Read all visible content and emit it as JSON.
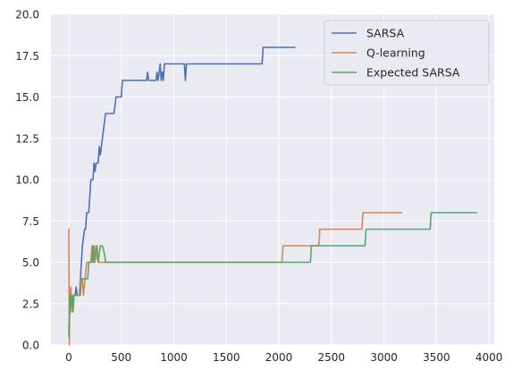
{
  "chart_data": {
    "type": "line",
    "title": "",
    "xlabel": "",
    "ylabel": "",
    "xlim": [
      -170,
      4050
    ],
    "ylim": [
      0,
      20
    ],
    "xticks": [
      0,
      500,
      1000,
      1500,
      2000,
      2500,
      3000,
      3500,
      4000
    ],
    "yticks": [
      0.0,
      2.5,
      5.0,
      7.5,
      10.0,
      12.5,
      15.0,
      17.5,
      20.0
    ],
    "xtick_labels": [
      "0",
      "500",
      "1000",
      "1500",
      "2000",
      "2500",
      "3000",
      "3500",
      "4000"
    ],
    "ytick_labels": [
      "0.0",
      "2.5",
      "5.0",
      "7.5",
      "10.0",
      "12.5",
      "15.0",
      "17.5",
      "20.0"
    ],
    "grid": true,
    "legend_position": "top-right",
    "series": [
      {
        "name": "SARSA",
        "color": "#4c72b0",
        "points": [
          [
            0,
            1
          ],
          [
            10,
            2
          ],
          [
            20,
            3
          ],
          [
            30,
            2
          ],
          [
            40,
            3
          ],
          [
            60,
            3
          ],
          [
            70,
            3.5
          ],
          [
            80,
            3
          ],
          [
            100,
            3
          ],
          [
            110,
            4
          ],
          [
            120,
            5
          ],
          [
            130,
            6
          ],
          [
            140,
            6.5
          ],
          [
            150,
            7
          ],
          [
            160,
            7
          ],
          [
            170,
            8
          ],
          [
            190,
            8
          ],
          [
            200,
            9
          ],
          [
            210,
            10
          ],
          [
            230,
            10
          ],
          [
            240,
            11
          ],
          [
            250,
            10.5
          ],
          [
            260,
            11
          ],
          [
            280,
            11
          ],
          [
            290,
            12
          ],
          [
            300,
            11.5
          ],
          [
            310,
            12
          ],
          [
            330,
            13
          ],
          [
            350,
            14
          ],
          [
            430,
            14
          ],
          [
            440,
            14.5
          ],
          [
            450,
            15
          ],
          [
            500,
            15
          ],
          [
            510,
            16
          ],
          [
            740,
            16
          ],
          [
            750,
            16.5
          ],
          [
            760,
            16
          ],
          [
            830,
            16
          ],
          [
            840,
            16.5
          ],
          [
            850,
            16
          ],
          [
            860,
            16.5
          ],
          [
            870,
            17
          ],
          [
            880,
            16
          ],
          [
            890,
            16.5
          ],
          [
            900,
            16
          ],
          [
            910,
            17
          ],
          [
            920,
            17
          ],
          [
            1100,
            17
          ],
          [
            1110,
            16
          ],
          [
            1120,
            17
          ],
          [
            1840,
            17
          ],
          [
            1850,
            18
          ],
          [
            2150,
            18
          ]
        ]
      },
      {
        "name": "Q-learning",
        "color": "#dd8452",
        "points": [
          [
            0,
            7
          ],
          [
            5,
            0
          ],
          [
            10,
            3
          ],
          [
            20,
            3.5
          ],
          [
            30,
            2
          ],
          [
            40,
            3
          ],
          [
            60,
            3
          ],
          [
            80,
            3
          ],
          [
            100,
            3
          ],
          [
            110,
            4
          ],
          [
            130,
            4
          ],
          [
            140,
            3
          ],
          [
            170,
            5
          ],
          [
            210,
            5
          ],
          [
            220,
            6
          ],
          [
            230,
            5
          ],
          [
            240,
            6
          ],
          [
            250,
            5
          ],
          [
            270,
            6
          ],
          [
            280,
            5
          ],
          [
            2030,
            5
          ],
          [
            2040,
            6
          ],
          [
            2380,
            6
          ],
          [
            2390,
            7
          ],
          [
            2790,
            7
          ],
          [
            2800,
            8
          ],
          [
            3170,
            8
          ]
        ]
      },
      {
        "name": "Expected SARSA",
        "color": "#55a868",
        "points": [
          [
            0,
            0.5
          ],
          [
            10,
            3
          ],
          [
            20,
            2.5
          ],
          [
            30,
            3
          ],
          [
            40,
            2
          ],
          [
            50,
            3
          ],
          [
            60,
            3
          ],
          [
            80,
            3
          ],
          [
            110,
            3
          ],
          [
            120,
            4
          ],
          [
            180,
            4
          ],
          [
            190,
            5
          ],
          [
            220,
            5
          ],
          [
            230,
            6
          ],
          [
            240,
            5
          ],
          [
            260,
            6
          ],
          [
            280,
            5
          ],
          [
            300,
            6
          ],
          [
            320,
            6
          ],
          [
            340,
            5.5
          ],
          [
            350,
            5
          ],
          [
            2300,
            5
          ],
          [
            2310,
            6
          ],
          [
            2820,
            6
          ],
          [
            2830,
            7
          ],
          [
            3440,
            7
          ],
          [
            3450,
            8
          ],
          [
            3880,
            8
          ]
        ]
      }
    ]
  }
}
